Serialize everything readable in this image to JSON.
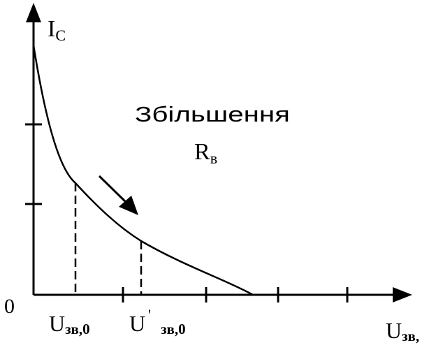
{
  "y_axis_label": {
    "main": "I",
    "sub": "C"
  },
  "origin_label": "0",
  "annotation": {
    "line1": "Збільшення",
    "main": "R",
    "sub": "в"
  },
  "x_marks": [
    {
      "main": "U",
      "sub": "зв,0"
    },
    {
      "main": "U",
      "prime": "'",
      "sub": "зв,0"
    }
  ],
  "x_axis_label": {
    "main": "U",
    "sub": "зв,"
  }
}
